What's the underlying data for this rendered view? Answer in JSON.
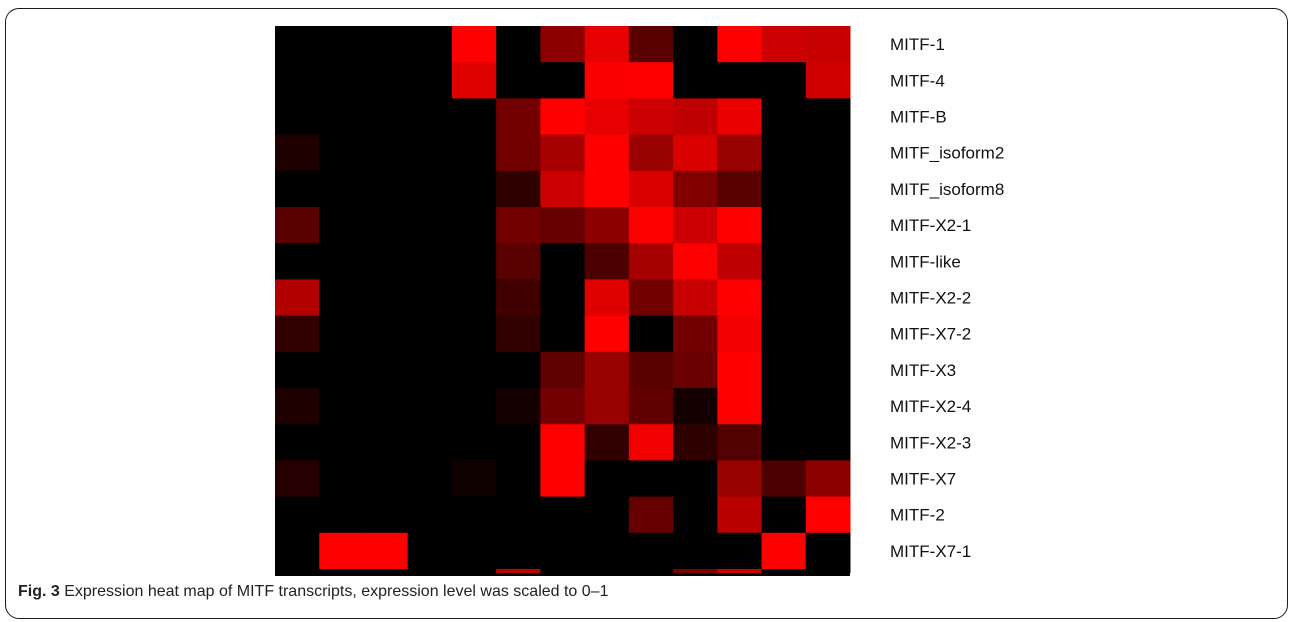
{
  "chart_data": {
    "type": "heatmap",
    "color_scale": {
      "low": "#000000",
      "high": "#ff0000",
      "min": 0,
      "max": 1
    },
    "rows": [
      "MITF-1",
      "MITF-4",
      "MITF-B",
      "MITF_isoform2",
      "MITF_isoform8",
      "MITF-X2-1",
      "MITF-like",
      "MITF-X2-2",
      "MITF-X7-2",
      "MITF-X3",
      "MITF-X2-4",
      "MITF-X2-3",
      "MITF-X7",
      "MITF-2",
      "MITF-X7-1"
    ],
    "values": [
      [
        0,
        0,
        0,
        0,
        1.0,
        0,
        0.55,
        0.9,
        0.35,
        0,
        1.0,
        0.8,
        0.78
      ],
      [
        0,
        0,
        0,
        0,
        0.88,
        0,
        0,
        0.98,
        1.0,
        0,
        0,
        0,
        0.82
      ],
      [
        0,
        0,
        0,
        0,
        0,
        0.45,
        1.0,
        0.9,
        0.8,
        0.75,
        0.92,
        0,
        0
      ],
      [
        0.12,
        0,
        0,
        0,
        0,
        0.45,
        0.65,
        1.0,
        0.6,
        0.85,
        0.6,
        0,
        0
      ],
      [
        0,
        0,
        0,
        0,
        0,
        0.18,
        0.8,
        1.0,
        0.85,
        0.5,
        0.35,
        0,
        0
      ],
      [
        0.35,
        0,
        0,
        0,
        0,
        0.45,
        0.4,
        0.55,
        1.0,
        0.8,
        1.0,
        0,
        0
      ],
      [
        0,
        0,
        0,
        0,
        0,
        0.35,
        0,
        0.3,
        0.65,
        1.0,
        0.75,
        0,
        0
      ],
      [
        0.7,
        0,
        0,
        0,
        0,
        0.25,
        0,
        0.88,
        0.45,
        0.78,
        1.0,
        0,
        0
      ],
      [
        0.2,
        0,
        0,
        0,
        0,
        0.2,
        0,
        1.0,
        0,
        0.45,
        0.95,
        0,
        0
      ],
      [
        0,
        0,
        0,
        0,
        0,
        0,
        0.38,
        0.6,
        0.35,
        0.42,
        1.0,
        0,
        0
      ],
      [
        0.12,
        0,
        0,
        0,
        0,
        0.08,
        0.45,
        0.6,
        0.38,
        0.08,
        1.0,
        0,
        0
      ],
      [
        0,
        0,
        0,
        0,
        0,
        0,
        1.0,
        0.2,
        0.95,
        0.18,
        0.32,
        0,
        0
      ],
      [
        0.15,
        0,
        0,
        0,
        0.06,
        0,
        1.0,
        0,
        0,
        0,
        0.6,
        0.3,
        0.55
      ],
      [
        0,
        0,
        0,
        0,
        0,
        0,
        0,
        0,
        0.4,
        0,
        0.72,
        0,
        1.0
      ],
      [
        0,
        1.0,
        1.0,
        0,
        0,
        0,
        0,
        0,
        0,
        0,
        0,
        1.0,
        0
      ]
    ],
    "partial_row_below": [
      0,
      0,
      0,
      0,
      0,
      0.75,
      0,
      0,
      0,
      0.5,
      0.8,
      0,
      0
    ]
  },
  "caption": {
    "label": "Fig. 3",
    "text": " Expression heat map of MITF transcripts, expression level was scaled to 0–1"
  }
}
